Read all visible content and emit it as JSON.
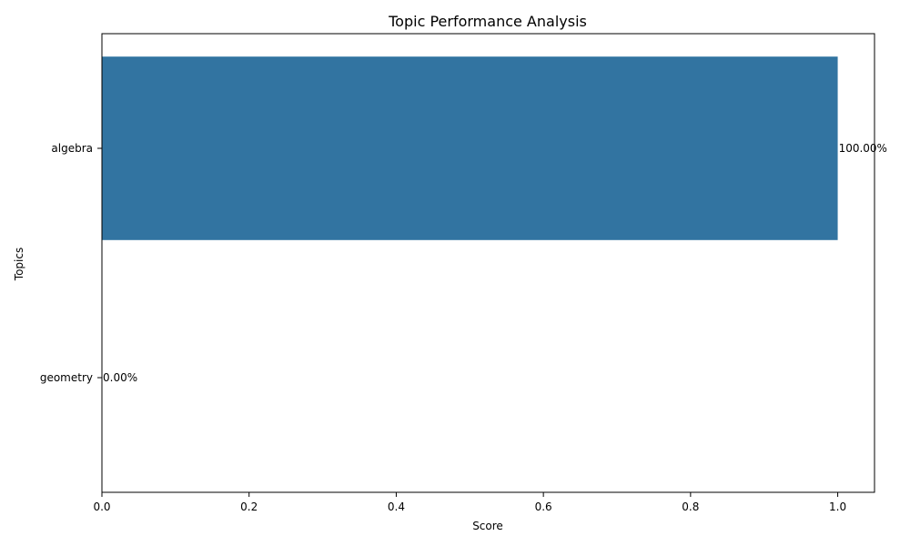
{
  "chart_data": {
    "type": "bar",
    "orientation": "horizontal",
    "title": "Topic Performance Analysis",
    "xlabel": "Score",
    "ylabel": "Topics",
    "categories": [
      "algebra",
      "geometry"
    ],
    "values": [
      1.0,
      0.0
    ],
    "data_labels": [
      "100.00%",
      "0.00%"
    ],
    "xlim": [
      0,
      1.05
    ],
    "xticks": [
      0.0,
      0.2,
      0.4,
      0.6,
      0.8,
      1.0
    ],
    "xtick_labels": [
      "0.0",
      "0.2",
      "0.4",
      "0.6",
      "0.8",
      "1.0"
    ],
    "grid": false,
    "legend": "none",
    "bar_color": "#3274a1"
  }
}
